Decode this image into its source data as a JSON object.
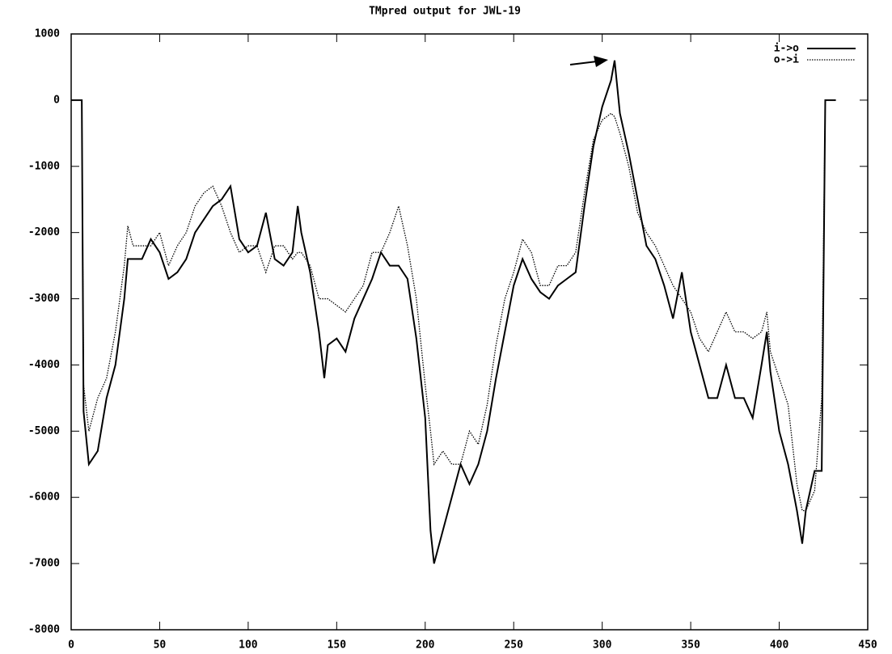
{
  "chart_data": {
    "type": "line",
    "title": "TMpred output for JWL-19",
    "x": [
      0,
      6,
      7,
      10,
      15,
      20,
      25,
      30,
      32,
      35,
      40,
      45,
      50,
      55,
      60,
      65,
      70,
      75,
      80,
      85,
      90,
      95,
      100,
      105,
      110,
      115,
      120,
      125,
      128,
      130,
      135,
      140,
      143,
      145,
      150,
      155,
      160,
      165,
      170,
      175,
      180,
      185,
      190,
      195,
      200,
      203,
      205,
      210,
      215,
      220,
      225,
      230,
      235,
      240,
      245,
      250,
      255,
      260,
      265,
      270,
      275,
      280,
      285,
      290,
      295,
      300,
      305,
      307,
      310,
      315,
      320,
      325,
      330,
      335,
      340,
      345,
      350,
      355,
      360,
      365,
      370,
      375,
      380,
      385,
      390,
      393,
      395,
      400,
      405,
      410,
      413,
      415,
      420,
      424,
      426,
      432
    ],
    "series": [
      {
        "name": "i->o",
        "color": "#000000",
        "dash": "solid",
        "values": [
          0,
          0,
          -4700,
          -5500,
          -5300,
          -4500,
          -4000,
          -3000,
          -2400,
          -2400,
          -2400,
          -2100,
          -2300,
          -2700,
          -2600,
          -2400,
          -2000,
          -1800,
          -1600,
          -1500,
          -1300,
          -2100,
          -2300,
          -2200,
          -1700,
          -2400,
          -2500,
          -2300,
          -1600,
          -2000,
          -2600,
          -3500,
          -4200,
          -3700,
          -3600,
          -3800,
          -3300,
          -3000,
          -2700,
          -2300,
          -2500,
          -2500,
          -2700,
          -3600,
          -4800,
          -6500,
          -7000,
          -6500,
          -6000,
          -5500,
          -5800,
          -5500,
          -5000,
          -4200,
          -3500,
          -2800,
          -2400,
          -2700,
          -2900,
          -3000,
          -2800,
          -2700,
          -2600,
          -1600,
          -700,
          -100,
          300,
          600,
          -200,
          -800,
          -1500,
          -2200,
          -2400,
          -2800,
          -3300,
          -2600,
          -3500,
          -4000,
          -4500,
          -4500,
          -4000,
          -4500,
          -4500,
          -4800,
          -4000,
          -3500,
          -4100,
          -5000,
          -5500,
          -6200,
          -6700,
          -6200,
          -5600,
          -5600,
          0,
          0
        ]
      },
      {
        "name": "o->i",
        "color": "#000000",
        "dash": "dotted",
        "values": [
          0,
          0,
          -4300,
          -5000,
          -4500,
          -4200,
          -3500,
          -2500,
          -1900,
          -2200,
          -2200,
          -2200,
          -2000,
          -2500,
          -2200,
          -2000,
          -1600,
          -1400,
          -1300,
          -1600,
          -2000,
          -2300,
          -2200,
          -2200,
          -2600,
          -2200,
          -2200,
          -2400,
          -2300,
          -2300,
          -2500,
          -3000,
          -3000,
          -3000,
          -3100,
          -3200,
          -3000,
          -2800,
          -2300,
          -2300,
          -2000,
          -1600,
          -2200,
          -3000,
          -4300,
          -5000,
          -5500,
          -5300,
          -5500,
          -5500,
          -5000,
          -5200,
          -4600,
          -3700,
          -3000,
          -2600,
          -2100,
          -2300,
          -2800,
          -2800,
          -2500,
          -2500,
          -2300,
          -1400,
          -600,
          -300,
          -200,
          -250,
          -500,
          -1000,
          -1700,
          -2000,
          -2200,
          -2500,
          -2800,
          -3000,
          -3200,
          -3600,
          -3800,
          -3500,
          -3200,
          -3500,
          -3500,
          -3600,
          -3500,
          -3200,
          -3800,
          -4200,
          -4600,
          -5800,
          -6200,
          -6200,
          -5900,
          -4500,
          0,
          0
        ]
      }
    ],
    "xlim": [
      0,
      450
    ],
    "xticks": [
      0,
      50,
      100,
      150,
      200,
      250,
      300,
      350,
      400,
      450
    ],
    "ylim": [
      -8000,
      1000
    ],
    "yticks": [
      -8000,
      -7000,
      -6000,
      -5000,
      -4000,
      -3000,
      -2000,
      -1000,
      0,
      1000
    ],
    "grid": false,
    "legend": "top-right"
  }
}
